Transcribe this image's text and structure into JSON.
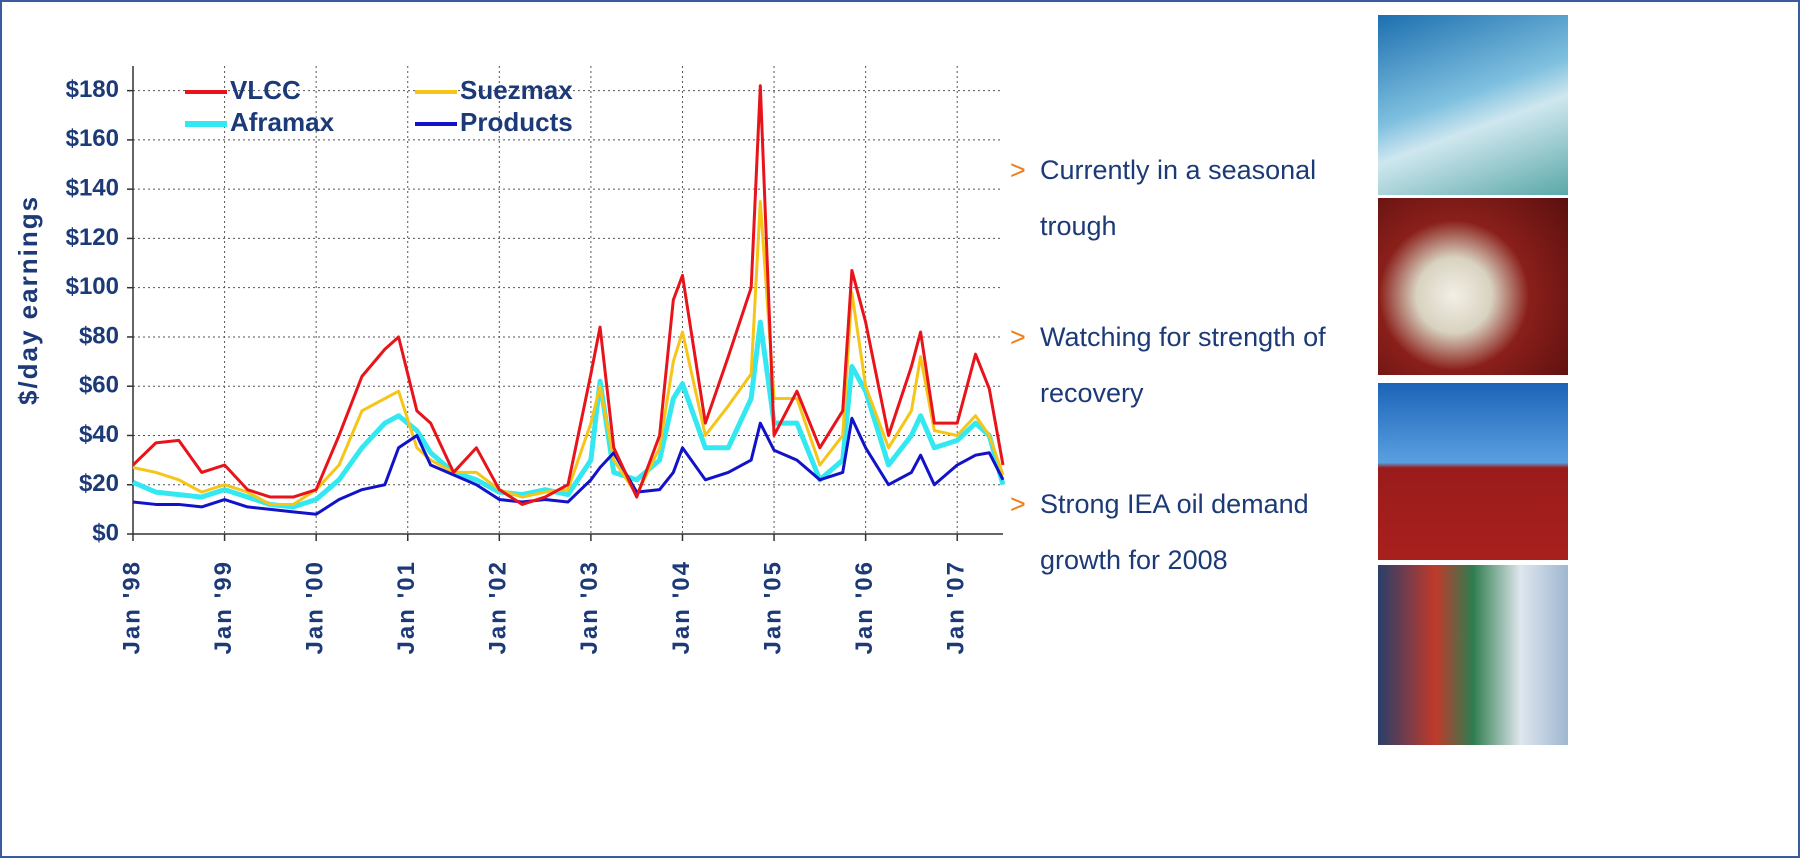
{
  "chart_data": {
    "type": "line",
    "y_label": "$/day earnings",
    "x": [
      1998,
      1998.25,
      1998.5,
      1998.75,
      1999,
      1999.25,
      1999.5,
      1999.75,
      2000,
      2000.25,
      2000.5,
      2000.75,
      2000.9,
      2001.1,
      2001.25,
      2001.5,
      2001.75,
      2002,
      2002.25,
      2002.5,
      2002.75,
      2003,
      2003.1,
      2003.25,
      2003.5,
      2003.75,
      2003.9,
      2004,
      2004.25,
      2004.5,
      2004.75,
      2004.85,
      2005,
      2005.25,
      2005.5,
      2005.75,
      2005.85,
      2006,
      2006.25,
      2006.5,
      2006.6,
      2006.75,
      2007,
      2007.2,
      2007.35,
      2007.5
    ],
    "series": [
      {
        "name": "VLCC",
        "color": "#e8141b",
        "width": 3,
        "values": [
          28,
          37,
          38,
          25,
          28,
          18,
          15,
          15,
          18,
          40,
          64,
          75,
          80,
          50,
          45,
          25,
          35,
          18,
          12,
          15,
          20,
          65,
          84,
          35,
          15,
          40,
          95,
          105,
          45,
          72,
          100,
          182,
          40,
          58,
          35,
          50,
          107,
          86,
          40,
          68,
          82,
          45,
          45,
          73,
          59,
          28
        ]
      },
      {
        "name": "Suezmax",
        "color": "#f5c518",
        "width": 3,
        "values": [
          27,
          25,
          22,
          17,
          20,
          17,
          12,
          12,
          18,
          28,
          50,
          55,
          58,
          35,
          30,
          25,
          25,
          18,
          15,
          17,
          18,
          45,
          60,
          30,
          16,
          35,
          70,
          82,
          40,
          52,
          65,
          135,
          55,
          55,
          28,
          40,
          98,
          60,
          35,
          50,
          72,
          42,
          40,
          48,
          40,
          24
        ]
      },
      {
        "name": "Aframax",
        "color": "#33e8f0",
        "width": 5,
        "values": [
          21,
          17,
          16,
          15,
          18,
          15,
          12,
          11,
          14,
          22,
          35,
          45,
          48,
          42,
          33,
          25,
          22,
          17,
          16,
          18,
          16,
          30,
          62,
          25,
          22,
          30,
          55,
          61,
          35,
          35,
          55,
          86,
          45,
          45,
          22,
          30,
          68,
          58,
          28,
          40,
          48,
          35,
          38,
          45,
          40,
          20
        ]
      },
      {
        "name": "Products",
        "color": "#1212c8",
        "width": 3,
        "values": [
          13,
          12,
          12,
          11,
          14,
          11,
          10,
          9,
          8,
          14,
          18,
          20,
          35,
          40,
          28,
          24,
          20,
          14,
          13,
          14,
          13,
          22,
          27,
          33,
          17,
          18,
          25,
          35,
          22,
          25,
          30,
          45,
          34,
          30,
          22,
          25,
          47,
          35,
          20,
          25,
          32,
          20,
          28,
          32,
          33,
          22
        ]
      }
    ],
    "xlim": [
      1998,
      2007.5
    ],
    "xticks": [
      {
        "value": 1998,
        "label": "Jan '98"
      },
      {
        "value": 1999,
        "label": "Jan '99"
      },
      {
        "value": 2000,
        "label": "Jan '00"
      },
      {
        "value": 2001,
        "label": "Jan '01"
      },
      {
        "value": 2002,
        "label": "Jan '02"
      },
      {
        "value": 2003,
        "label": "Jan '03"
      },
      {
        "value": 2004,
        "label": "Jan '04"
      },
      {
        "value": 2005,
        "label": "Jan '05"
      },
      {
        "value": 2006,
        "label": "Jan '06"
      },
      {
        "value": 2007,
        "label": "Jan '07"
      }
    ],
    "ylim": [
      0,
      190
    ],
    "yticks": [
      {
        "value": 0,
        "label": "$0"
      },
      {
        "value": 20,
        "label": "$20"
      },
      {
        "value": 40,
        "label": "$40"
      },
      {
        "value": 60,
        "label": "$60"
      },
      {
        "value": 80,
        "label": "$80"
      },
      {
        "value": 100,
        "label": "$100"
      },
      {
        "value": 120,
        "label": "$120"
      },
      {
        "value": 140,
        "label": "$140"
      },
      {
        "value": 160,
        "label": "$160"
      },
      {
        "value": 180,
        "label": "$180"
      }
    ],
    "grid": true
  },
  "bullet_marker": ">",
  "bullets": [
    "Currently in a seasonal trough",
    "Watching for strength of recovery",
    "Strong IEA oil demand growth for 2008"
  ]
}
